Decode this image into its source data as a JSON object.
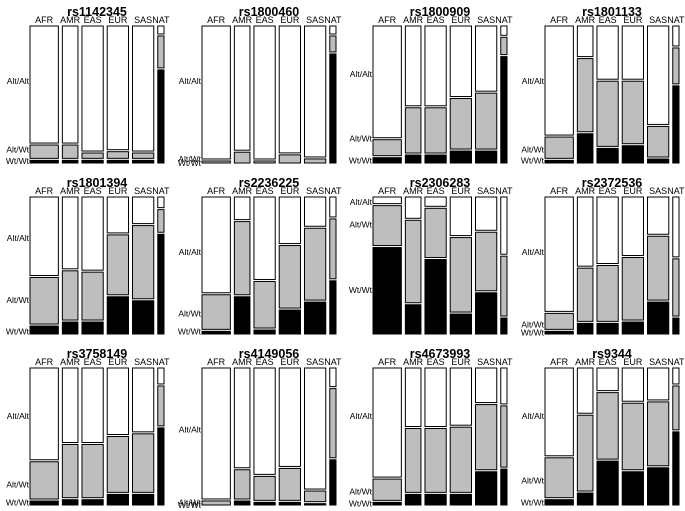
{
  "chart_data": {
    "type": "mosaic",
    "description_source": "Genotype frequency mosaic plots by population",
    "populations": [
      "AFR",
      "AMR",
      "EAS",
      "EUR",
      "SAS",
      "NAT"
    ],
    "population_relative_widths": [
      1.0,
      0.55,
      0.75,
      0.75,
      0.75,
      0.22
    ],
    "genotypes": [
      "Wt/Wt",
      "Alt/Wt",
      "Alt/Alt"
    ],
    "colors": {
      "Wt/Wt": "#000000",
      "Alt/Wt": "#bebebe",
      "Alt/Alt": "#ffffff",
      "outline": "#000000"
    },
    "panels": [
      {
        "title": "rs1142345",
        "freqs": [
          [
            0.02,
            0.1,
            0.88
          ],
          [
            0.02,
            0.1,
            0.88
          ],
          [
            0.02,
            0.04,
            0.94
          ],
          [
            0.02,
            0.05,
            0.93
          ],
          [
            0.02,
            0.04,
            0.94
          ],
          [
            0.7,
            0.24,
            0.06
          ]
        ],
        "ylabels": [
          {
            "text": "Alt/Alt",
            "y": 0.6
          },
          {
            "text": "Alt/Wt",
            "y": 0.1
          },
          {
            "text": "Wt/Wt",
            "y": 0.015
          }
        ]
      },
      {
        "title": "rs1800460",
        "freqs": [
          [
            0.0,
            0.015,
            0.985
          ],
          [
            0.0,
            0.08,
            0.92
          ],
          [
            0.0,
            0.015,
            0.985
          ],
          [
            0.0,
            0.06,
            0.94
          ],
          [
            0.0,
            0.03,
            0.97
          ],
          [
            0.82,
            0.12,
            0.06
          ]
        ],
        "ylabels": [
          {
            "text": "Alt/Alt",
            "y": 0.6
          },
          {
            "text": "Alt/Wt",
            "y": 0.03
          },
          {
            "text": "Wt/Wt",
            "y": 0.0
          }
        ]
      },
      {
        "title": "rs1800909",
        "freqs": [
          [
            0.04,
            0.12,
            0.84
          ],
          [
            0.06,
            0.34,
            0.6
          ],
          [
            0.06,
            0.34,
            0.6
          ],
          [
            0.09,
            0.38,
            0.53
          ],
          [
            0.09,
            0.42,
            0.49
          ],
          [
            0.8,
            0.13,
            0.07
          ]
        ],
        "ylabels": [
          {
            "text": "Alt/Alt",
            "y": 0.65
          },
          {
            "text": "Alt/Wt",
            "y": 0.18
          },
          {
            "text": "Wt/Wt",
            "y": 0.02
          }
        ]
      },
      {
        "title": "rs1801133",
        "freqs": [
          [
            0.02,
            0.16,
            0.82
          ],
          [
            0.22,
            0.55,
            0.23
          ],
          [
            0.11,
            0.49,
            0.4
          ],
          [
            0.13,
            0.47,
            0.4
          ],
          [
            0.03,
            0.23,
            0.74
          ],
          [
            0.58,
            0.27,
            0.15
          ]
        ],
        "ylabels": [
          {
            "text": "Alt/Alt",
            "y": 0.6
          },
          {
            "text": "Alt/Wt",
            "y": 0.1
          },
          {
            "text": "Wt/Wt",
            "y": 0.02
          }
        ]
      },
      {
        "title": "rs1801394",
        "freqs": [
          [
            0.06,
            0.35,
            0.59
          ],
          [
            0.09,
            0.37,
            0.54
          ],
          [
            0.09,
            0.36,
            0.55
          ],
          [
            0.28,
            0.45,
            0.27
          ],
          [
            0.25,
            0.55,
            0.2
          ],
          [
            0.75,
            0.17,
            0.08
          ]
        ],
        "ylabels": [
          {
            "text": "Alt/Alt",
            "y": 0.7
          },
          {
            "text": "Alt/Wt",
            "y": 0.25
          },
          {
            "text": "Wt/Wt",
            "y": 0.02
          }
        ]
      },
      {
        "title": "rs2236225",
        "freqs": [
          [
            0.02,
            0.26,
            0.72
          ],
          [
            0.28,
            0.55,
            0.17
          ],
          [
            0.03,
            0.35,
            0.62
          ],
          [
            0.18,
            0.47,
            0.35
          ],
          [
            0.24,
            0.54,
            0.22
          ],
          [
            0.4,
            0.45,
            0.15
          ]
        ],
        "ylabels": [
          {
            "text": "Alt/Alt",
            "y": 0.6
          },
          {
            "text": "Alt/Wt",
            "y": 0.15
          },
          {
            "text": "Wt/Wt",
            "y": 0.02
          }
        ]
      },
      {
        "title": "rs2306283",
        "freqs": [
          [
            0.65,
            0.3,
            0.05
          ],
          [
            0.22,
            0.62,
            0.16
          ],
          [
            0.56,
            0.37,
            0.07
          ],
          [
            0.15,
            0.56,
            0.29
          ],
          [
            0.31,
            0.44,
            0.25
          ],
          [
            0.12,
            0.45,
            0.43
          ]
        ],
        "ylabels": [
          {
            "text": "Alt/Alt",
            "y": 0.97
          },
          {
            "text": "Alt/Wt",
            "y": 0.8
          },
          {
            "text": "Wt/Wt",
            "y": 0.32
          }
        ]
      },
      {
        "title": "rs2372536",
        "freqs": [
          [
            0.02,
            0.12,
            0.86
          ],
          [
            0.08,
            0.4,
            0.52
          ],
          [
            0.08,
            0.42,
            0.5
          ],
          [
            0.09,
            0.47,
            0.44
          ],
          [
            0.24,
            0.48,
            0.28
          ],
          [
            0.12,
            0.43,
            0.45
          ]
        ],
        "ylabels": [
          {
            "text": "Alt/Alt",
            "y": 0.6
          },
          {
            "text": "Alt/Wt",
            "y": 0.07
          },
          {
            "text": "Wt/Wt",
            "y": 0.01
          }
        ]
      },
      {
        "title": "rs3758149",
        "freqs": [
          [
            0.03,
            0.28,
            0.69
          ],
          [
            0.04,
            0.4,
            0.56
          ],
          [
            0.04,
            0.4,
            0.56
          ],
          [
            0.08,
            0.42,
            0.5
          ],
          [
            0.08,
            0.44,
            0.48
          ],
          [
            0.58,
            0.3,
            0.12
          ]
        ],
        "ylabels": [
          {
            "text": "Alt/Alt",
            "y": 0.65
          },
          {
            "text": "Alt/Wt",
            "y": 0.15
          },
          {
            "text": "Wt/Wt",
            "y": 0.02
          }
        ]
      },
      {
        "title": "rs4149056",
        "freqs": [
          [
            0.0,
            0.03,
            0.97
          ],
          [
            0.03,
            0.22,
            0.75
          ],
          [
            0.02,
            0.18,
            0.8
          ],
          [
            0.02,
            0.24,
            0.74
          ],
          [
            0.01,
            0.08,
            0.91
          ],
          [
            0.34,
            0.52,
            0.14
          ]
        ],
        "ylabels": [
          {
            "text": "Alt/Alt",
            "y": 0.55
          },
          {
            "text": "Alt/Wt",
            "y": 0.02
          },
          {
            "text": "Wt/Wt",
            "y": 0.0
          }
        ]
      },
      {
        "title": "rs4673993",
        "freqs": [
          [
            0.02,
            0.16,
            0.82
          ],
          [
            0.08,
            0.48,
            0.44
          ],
          [
            0.08,
            0.48,
            0.44
          ],
          [
            0.08,
            0.49,
            0.43
          ],
          [
            0.25,
            0.49,
            0.26
          ],
          [
            0.27,
            0.46,
            0.27
          ]
        ],
        "ylabels": [
          {
            "text": "Alt/Alt",
            "y": 0.65
          },
          {
            "text": "Alt/Wt",
            "y": 0.1
          },
          {
            "text": "Wt/Wt",
            "y": 0.01
          }
        ]
      },
      {
        "title": "rs9344",
        "freqs": [
          [
            0.04,
            0.3,
            0.66
          ],
          [
            0.09,
            0.57,
            0.34
          ],
          [
            0.33,
            0.5,
            0.17
          ],
          [
            0.25,
            0.5,
            0.25
          ],
          [
            0.28,
            0.48,
            0.24
          ],
          [
            0.55,
            0.33,
            0.12
          ]
        ],
        "ylabels": [
          {
            "text": "Alt/Alt",
            "y": 0.65
          },
          {
            "text": "Alt/Wt",
            "y": 0.18
          },
          {
            "text": "Wt/Wt",
            "y": 0.02
          }
        ]
      }
    ]
  }
}
